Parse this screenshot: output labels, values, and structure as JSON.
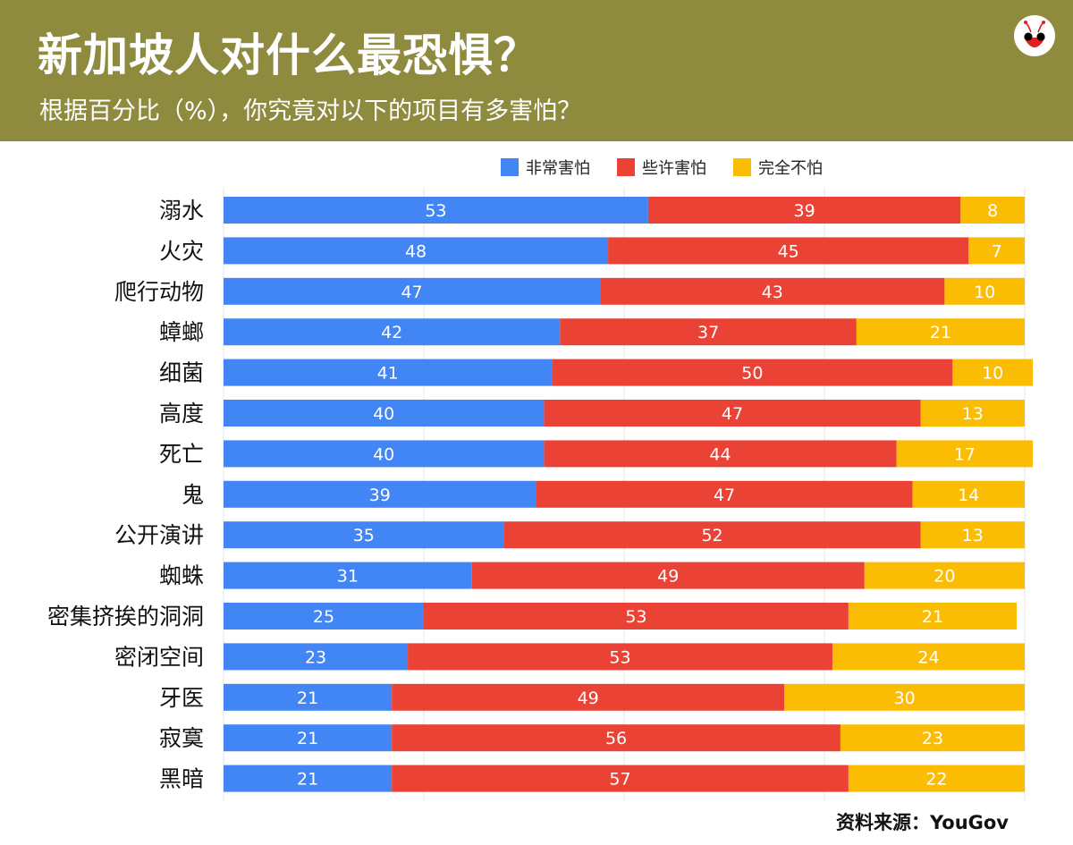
{
  "header": {
    "title": "新加坡人对什么最恐惧？",
    "subtitle": "根据百分比（%），你究竟对以下的项目有多害怕？"
  },
  "source": "资料来源：YouGov",
  "colors": {
    "header": "#8e8a3e",
    "very": "#4285f4",
    "somewhat": "#ea4335",
    "not": "#fbbc04"
  },
  "chart_data": {
    "type": "bar",
    "orientation": "horizontal",
    "stacked": true,
    "xlim": [
      0,
      100
    ],
    "grid": true,
    "legend_position": "top",
    "categories": [
      "溺水",
      "火灾",
      "爬行动物",
      "蟑螂",
      "细菌",
      "高度",
      "死亡",
      "鬼",
      "公开演讲",
      "蜘蛛",
      "密集挤挨的洞洞",
      "密闭空间",
      "牙医",
      "寂寞",
      "黑暗"
    ],
    "series": [
      {
        "name": "非常害怕",
        "color": "#4285f4",
        "values": [
          53,
          48,
          47,
          42,
          41,
          40,
          40,
          39,
          35,
          31,
          25,
          23,
          21,
          21,
          21
        ]
      },
      {
        "name": "些许害怕",
        "color": "#ea4335",
        "values": [
          39,
          45,
          43,
          37,
          50,
          47,
          44,
          47,
          52,
          49,
          53,
          53,
          49,
          56,
          57
        ]
      },
      {
        "name": "完全不怕",
        "color": "#fbbc04",
        "values": [
          8,
          7,
          10,
          21,
          10,
          13,
          17,
          14,
          13,
          20,
          21,
          24,
          30,
          23,
          22
        ]
      }
    ]
  }
}
